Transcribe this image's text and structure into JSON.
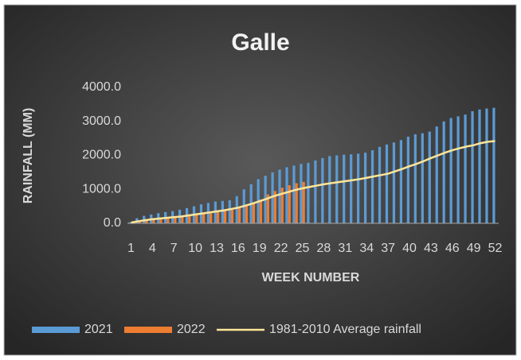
{
  "chart_data": {
    "type": "bar",
    "title": "Galle",
    "x_label": "WEEK NUMBER",
    "y_label": "RAINFALL (MM)",
    "categories": [
      "1",
      null,
      null,
      "4",
      null,
      null,
      "7",
      null,
      null,
      "10",
      null,
      null,
      "13",
      null,
      null,
      "16",
      null,
      null,
      "19",
      null,
      null,
      "22",
      null,
      null,
      "25",
      null,
      null,
      "28",
      null,
      null,
      "31",
      null,
      null,
      "34",
      null,
      null,
      "37",
      null,
      null,
      "40",
      null,
      null,
      "43",
      null,
      null,
      "46",
      null,
      null,
      "49",
      null,
      null,
      "52"
    ],
    "series": [
      {
        "name": "2021",
        "color": "#5b9bd5",
        "kind": "bar",
        "values": [
          30,
          150,
          220,
          260,
          300,
          330,
          360,
          400,
          450,
          500,
          560,
          600,
          640,
          660,
          680,
          800,
          1000,
          1150,
          1300,
          1400,
          1500,
          1580,
          1650,
          1700,
          1750,
          1780,
          1850,
          1920,
          1980,
          2000,
          2020,
          2030,
          2050,
          2080,
          2150,
          2250,
          2320,
          2380,
          2450,
          2550,
          2620,
          2650,
          2700,
          2850,
          3000,
          3100,
          3150,
          3200,
          3300,
          3350,
          3380,
          3400
        ]
      },
      {
        "name": "2022",
        "color": "#ed7d31",
        "kind": "bar",
        "values": [
          20,
          60,
          100,
          130,
          150,
          170,
          190,
          210,
          230,
          260,
          280,
          300,
          330,
          360,
          400,
          450,
          520,
          600,
          700,
          850,
          950,
          1050,
          1120,
          1180,
          1220,
          null,
          null,
          null,
          null,
          null,
          null,
          null,
          null,
          null,
          null,
          null,
          null,
          null,
          null,
          null,
          null,
          null,
          null,
          null,
          null,
          null,
          null,
          null,
          null,
          null,
          null,
          null
        ]
      },
      {
        "name": "1981-2010 Average rainfall",
        "color": "#ffe699",
        "kind": "line",
        "values": [
          20,
          60,
          90,
          120,
          140,
          160,
          180,
          200,
          230,
          260,
          290,
          320,
          350,
          380,
          420,
          460,
          520,
          580,
          650,
          720,
          800,
          860,
          920,
          980,
          1030,
          1070,
          1110,
          1150,
          1180,
          1210,
          1240,
          1270,
          1300,
          1340,
          1380,
          1420,
          1460,
          1530,
          1600,
          1680,
          1750,
          1830,
          1920,
          2000,
          2080,
          2150,
          2210,
          2260,
          2300,
          2360,
          2400,
          2420
        ]
      }
    ],
    "ylim": [
      0,
      4000
    ],
    "yticks": [
      {
        "value": 0,
        "label": "0.0"
      },
      {
        "value": 1000,
        "label": "1000.0"
      },
      {
        "value": 2000,
        "label": "2000.0"
      },
      {
        "value": 3000,
        "label": "3000.0"
      },
      {
        "value": 4000,
        "label": "4000.0"
      }
    ],
    "grid": false,
    "legend": "bottom"
  }
}
